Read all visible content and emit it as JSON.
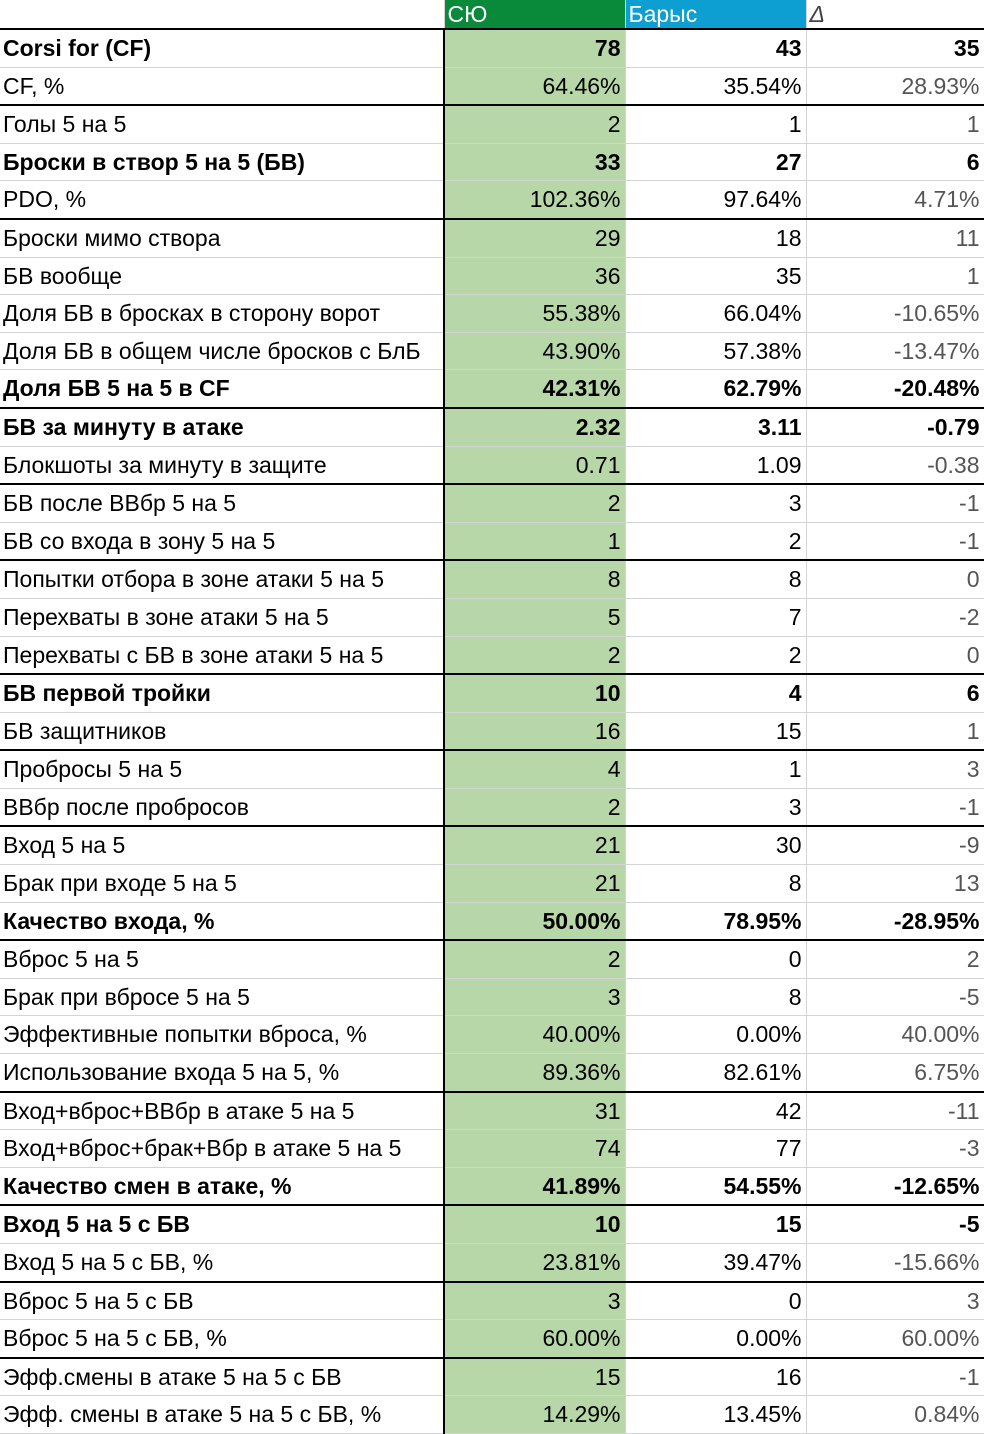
{
  "header": {
    "label": "",
    "team_a": "СЮ",
    "team_b": "Барыс",
    "delta": "Δ"
  },
  "colors": {
    "team_a_header": "#088a3a",
    "team_b_header": "#0d9fd2",
    "team_a_cell": "#b7d7a8"
  },
  "rows": [
    {
      "label": "Corsi for (CF)",
      "a": "78",
      "b": "43",
      "d": "35",
      "bold": true,
      "sep": false
    },
    {
      "label": "CF, %",
      "a": "64.46%",
      "b": "35.54%",
      "d": "28.93%",
      "bold": false,
      "sep": false
    },
    {
      "label": "Голы 5 на 5",
      "a": "2",
      "b": "1",
      "d": "1",
      "bold": false,
      "sep": true
    },
    {
      "label": "Броски в створ 5 на 5 (БВ)",
      "a": "33",
      "b": "27",
      "d": "6",
      "bold": true,
      "sep": false
    },
    {
      "label": "PDO, %",
      "a": "102.36%",
      "b": "97.64%",
      "d": "4.71%",
      "bold": false,
      "sep": false
    },
    {
      "label": "Броски мимо створа",
      "a": "29",
      "b": "18",
      "d": "11",
      "bold": false,
      "sep": true
    },
    {
      "label": "БВ вообще",
      "a": "36",
      "b": "35",
      "d": "1",
      "bold": false,
      "sep": false
    },
    {
      "label": "Доля БВ в бросках в сторону ворот",
      "a": "55.38%",
      "b": "66.04%",
      "d": "-10.65%",
      "bold": false,
      "sep": false
    },
    {
      "label": "Доля БВ в общем числе бросков с БлБ",
      "a": "43.90%",
      "b": "57.38%",
      "d": "-13.47%",
      "bold": false,
      "sep": false
    },
    {
      "label": "Доля БВ 5 на 5 в CF",
      "a": "42.31%",
      "b": "62.79%",
      "d": "-20.48%",
      "bold": true,
      "sep": false
    },
    {
      "label": "БВ за минуту в атаке",
      "a": "2.32",
      "b": "3.11",
      "d": "-0.79",
      "bold": true,
      "sep": true
    },
    {
      "label": "Блокшоты за минуту в защите",
      "a": "0.71",
      "b": "1.09",
      "d": "-0.38",
      "bold": false,
      "sep": false
    },
    {
      "label": "БВ после ВВбр 5 на 5",
      "a": "2",
      "b": "3",
      "d": "-1",
      "bold": false,
      "sep": true
    },
    {
      "label": "БВ со входа в зону 5 на 5",
      "a": "1",
      "b": "2",
      "d": "-1",
      "bold": false,
      "sep": false
    },
    {
      "label": "Попытки отбора в зоне атаки 5 на 5",
      "a": "8",
      "b": "8",
      "d": "0",
      "bold": false,
      "sep": true
    },
    {
      "label": "Перехваты в зоне атаки 5 на 5",
      "a": "5",
      "b": "7",
      "d": "-2",
      "bold": false,
      "sep": false
    },
    {
      "label": "Перехваты с БВ в зоне атаки 5 на 5",
      "a": "2",
      "b": "2",
      "d": "0",
      "bold": false,
      "sep": false
    },
    {
      "label": "БВ первой тройки",
      "a": "10",
      "b": "4",
      "d": "6",
      "bold": true,
      "sep": true
    },
    {
      "label": "БВ защитников",
      "a": "16",
      "b": "15",
      "d": "1",
      "bold": false,
      "sep": false
    },
    {
      "label": "Пробросы 5 на 5",
      "a": "4",
      "b": "1",
      "d": "3",
      "bold": false,
      "sep": true
    },
    {
      "label": "ВВбр после пробросов",
      "a": "2",
      "b": "3",
      "d": "-1",
      "bold": false,
      "sep": false
    },
    {
      "label": "Вход 5 на 5",
      "a": "21",
      "b": "30",
      "d": "-9",
      "bold": false,
      "sep": true
    },
    {
      "label": "Брак при входе 5 на 5",
      "a": "21",
      "b": "8",
      "d": "13",
      "bold": false,
      "sep": false
    },
    {
      "label": "Качество входа, %",
      "a": "50.00%",
      "b": "78.95%",
      "d": "-28.95%",
      "bold": true,
      "sep": false
    },
    {
      "label": "Вброс 5 на 5",
      "a": "2",
      "b": "0",
      "d": "2",
      "bold": false,
      "sep": true
    },
    {
      "label": "Брак при вбросе 5 на 5",
      "a": "3",
      "b": "8",
      "d": "-5",
      "bold": false,
      "sep": false
    },
    {
      "label": "Эффективные попытки вброса, %",
      "a": "40.00%",
      "b": "0.00%",
      "d": "40.00%",
      "bold": false,
      "sep": false
    },
    {
      "label": "Использование входа 5 на 5, %",
      "a": "89.36%",
      "b": "82.61%",
      "d": "6.75%",
      "bold": false,
      "sep": false
    },
    {
      "label": "Вход+вброс+ВВбр в атаке 5 на 5",
      "a": "31",
      "b": "42",
      "d": "-11",
      "bold": false,
      "sep": true
    },
    {
      "label": "Вход+вброс+брак+Вбр в атаке 5 на 5",
      "a": "74",
      "b": "77",
      "d": "-3",
      "bold": false,
      "sep": false
    },
    {
      "label": "Качество смен в атаке, %",
      "a": "41.89%",
      "b": "54.55%",
      "d": "-12.65%",
      "bold": true,
      "sep": false
    },
    {
      "label": "Вход 5 на 5 с БВ",
      "a": "10",
      "b": "15",
      "d": "-5",
      "bold": true,
      "sep": true
    },
    {
      "label": "Вход 5 на 5 с БВ, %",
      "a": "23.81%",
      "b": "39.47%",
      "d": "-15.66%",
      "bold": false,
      "sep": false
    },
    {
      "label": "Вброс 5 на 5 с БВ",
      "a": "3",
      "b": "0",
      "d": "3",
      "bold": false,
      "sep": true
    },
    {
      "label": "Вброс 5 на 5 с БВ, %",
      "a": "60.00%",
      "b": "0.00%",
      "d": "60.00%",
      "bold": false,
      "sep": false
    },
    {
      "label": "Эфф.смены в атаке 5 на 5 с БВ",
      "a": "15",
      "b": "16",
      "d": "-1",
      "bold": false,
      "sep": true
    },
    {
      "label": "Эфф. смены в атаке 5 на 5 с БВ, %",
      "a": "14.29%",
      "b": "13.45%",
      "d": "0.84%",
      "bold": false,
      "sep": false
    }
  ]
}
